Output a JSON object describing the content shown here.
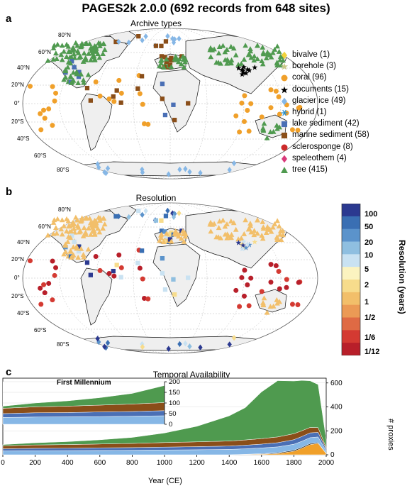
{
  "title": "PAGES2k 2.0.0 (692 records from 648 sites)",
  "panel_a": {
    "letter": "a",
    "subtitle": "Archive types",
    "lat_labels": [
      "80°N",
      "60°N",
      "40°N",
      "20°N",
      "0°",
      "20°S",
      "40°S",
      "60°S",
      "80°S"
    ],
    "legend": [
      {
        "label": "bivalve (1)",
        "color": "#f2d23c",
        "marker": "diamond"
      },
      {
        "label": "borehole (3)",
        "color": "#c8c88a",
        "marker": "star"
      },
      {
        "label": "coral (96)",
        "color": "#f0a02a",
        "marker": "circle"
      },
      {
        "label": "documents (15)",
        "color": "#000000",
        "marker": "star"
      },
      {
        "label": "glacier ice (49)",
        "color": "#86b7e6",
        "marker": "diamond"
      },
      {
        "label": "hybrid (1)",
        "color": "#1e8fd6",
        "marker": "asterisk"
      },
      {
        "label": "lake sediment (42)",
        "color": "#4a6fb5",
        "marker": "square"
      },
      {
        "label": "marine sediment (58)",
        "color": "#8a4e19",
        "marker": "square"
      },
      {
        "label": "sclerosponge (8)",
        "color": "#cc2a2a",
        "marker": "circle"
      },
      {
        "label": "speleothem (4)",
        "color": "#d93a7a",
        "marker": "diamond"
      },
      {
        "label": "tree (415)",
        "color": "#4f9a4f",
        "marker": "triangle"
      }
    ]
  },
  "panel_b": {
    "letter": "b",
    "subtitle": "Resolution",
    "lat_labels": [
      "80°N",
      "60°N",
      "40°N",
      "20°N",
      "0°",
      "20°S",
      "40°S",
      "60°S",
      "80°S"
    ],
    "colorbar": {
      "title": "Resolution (years)",
      "labels": [
        "100",
        "50",
        "20",
        "10",
        "5",
        "2",
        "1",
        "1/2",
        "1/6",
        "1/12"
      ],
      "colors": [
        "#2b3990",
        "#3a6fb3",
        "#5b93cb",
        "#8fbfe0",
        "#c9e2f2",
        "#fbf3c0",
        "#f7dc8c",
        "#f2bf6a",
        "#eb9a55",
        "#df6a44",
        "#d43a32",
        "#b81f2a"
      ]
    }
  },
  "panel_c": {
    "letter": "c",
    "subtitle": "Temporal Availability",
    "inset_title": "First Millennium",
    "inset_y_ticks": [
      "200",
      "150",
      "100",
      "50",
      "0"
    ],
    "main_y_ticks": [
      "600",
      "400",
      "200",
      "0"
    ],
    "y_label": "# proxies",
    "x_label": "Year (CE)",
    "x_ticks": [
      "0",
      "200",
      "400",
      "600",
      "800",
      "1000",
      "1200",
      "1400",
      "1600",
      "1800",
      "2000"
    ]
  },
  "chart_data": {
    "type": "area",
    "title": "Temporal Availability",
    "xlabel": "Year (CE)",
    "ylabel": "# proxies",
    "xlim": [
      0,
      2000
    ],
    "ylim": [
      0,
      640
    ],
    "x": [
      0,
      200,
      400,
      600,
      800,
      1000,
      1200,
      1400,
      1500,
      1600,
      1700,
      1800,
      1850,
      1900,
      1950,
      2000
    ],
    "stack_order_bottom_to_top": [
      "coral",
      "documents",
      "glacier ice",
      "lake sediment",
      "marine sediment",
      "tree"
    ],
    "series": [
      {
        "name": "coral",
        "color": "#f0a02a",
        "values": [
          0,
          0,
          0,
          0,
          0,
          0,
          0,
          0,
          2,
          5,
          10,
          30,
          55,
          85,
          95,
          10
        ]
      },
      {
        "name": "documents",
        "color": "#000000",
        "values": [
          0,
          0,
          0,
          0,
          0,
          0,
          0,
          0,
          2,
          4,
          6,
          8,
          8,
          8,
          6,
          2
        ]
      },
      {
        "name": "glacier ice",
        "color": "#86b7e6",
        "values": [
          32,
          34,
          35,
          36,
          38,
          40,
          42,
          45,
          46,
          48,
          50,
          50,
          50,
          50,
          48,
          20
        ]
      },
      {
        "name": "lake sediment",
        "color": "#4a6fb5",
        "values": [
          18,
          20,
          20,
          22,
          22,
          24,
          26,
          28,
          30,
          32,
          35,
          38,
          40,
          40,
          38,
          15
        ]
      },
      {
        "name": "marine sediment",
        "color": "#8a4e19",
        "values": [
          25,
          28,
          30,
          32,
          35,
          38,
          40,
          42,
          44,
          46,
          48,
          50,
          48,
          45,
          40,
          12
        ]
      },
      {
        "name": "tree",
        "color": "#4f9a4f",
        "values": [
          10,
          18,
          25,
          35,
          50,
          80,
          130,
          210,
          270,
          390,
          470,
          440,
          420,
          390,
          360,
          70
        ]
      }
    ]
  }
}
